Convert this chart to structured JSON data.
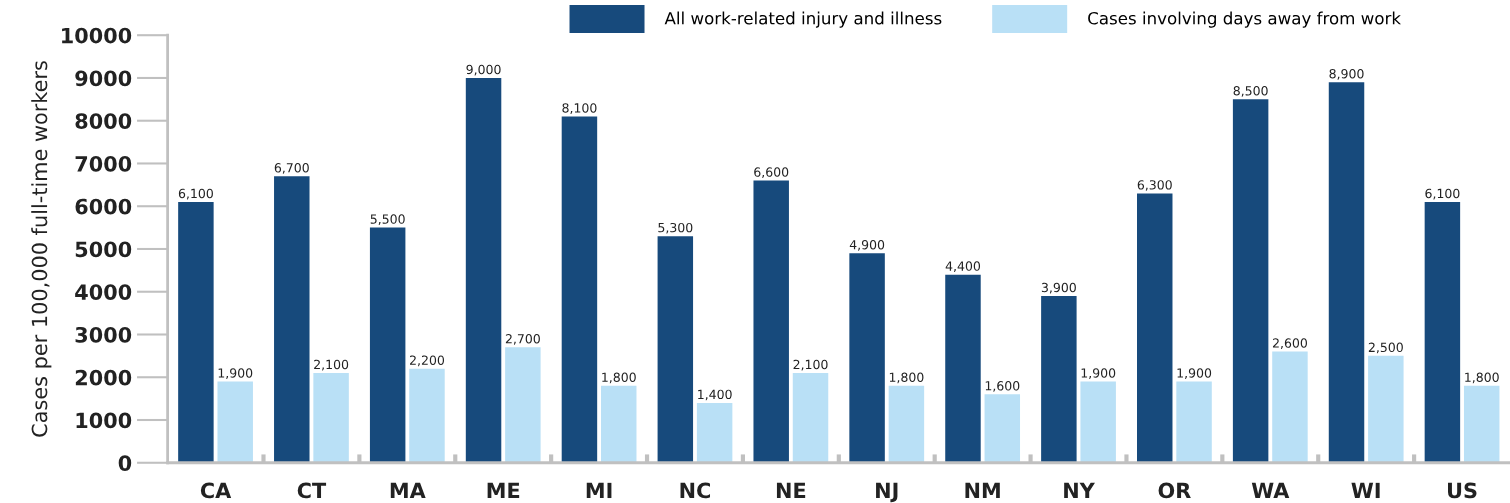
{
  "chart_data": {
    "type": "bar",
    "ylabel": "Cases per 100,000 full-time workers",
    "categories": [
      "CA",
      "CT",
      "MA",
      "ME",
      "MI",
      "NC",
      "NE",
      "NJ",
      "NM",
      "NY",
      "OR",
      "WA",
      "WI",
      "US"
    ],
    "series": [
      {
        "name": "All work-related injury and illness",
        "color": "#174a7c",
        "values": [
          6100,
          6700,
          5500,
          9000,
          8100,
          5300,
          6600,
          4900,
          4400,
          3900,
          6300,
          8500,
          8900,
          6100
        ],
        "value_labels": [
          "6,100",
          "6,700",
          "5,500",
          "9,000",
          "8,100",
          "5,300",
          "6,600",
          "4,900",
          "4,400",
          "3,900",
          "6,300",
          "8,500",
          "8,900",
          "6,100"
        ]
      },
      {
        "name": "Cases involving days away from work",
        "color": "#b9e0f6",
        "values": [
          1900,
          2100,
          2200,
          2700,
          1800,
          1400,
          2100,
          1800,
          1600,
          1900,
          1900,
          2600,
          2500,
          1800
        ],
        "value_labels": [
          "1,900",
          "2,100",
          "2,200",
          "2,700",
          "1,800",
          "1,400",
          "2,100",
          "1,800",
          "1,600",
          "1,900",
          "1,900",
          "2,600",
          "2,500",
          "1,800"
        ]
      }
    ],
    "ylim": [
      0,
      10000
    ],
    "yticks": [
      0,
      1000,
      2000,
      3000,
      4000,
      5000,
      6000,
      7000,
      8000,
      9000,
      10000
    ],
    "grid": false,
    "legend": "top right"
  }
}
